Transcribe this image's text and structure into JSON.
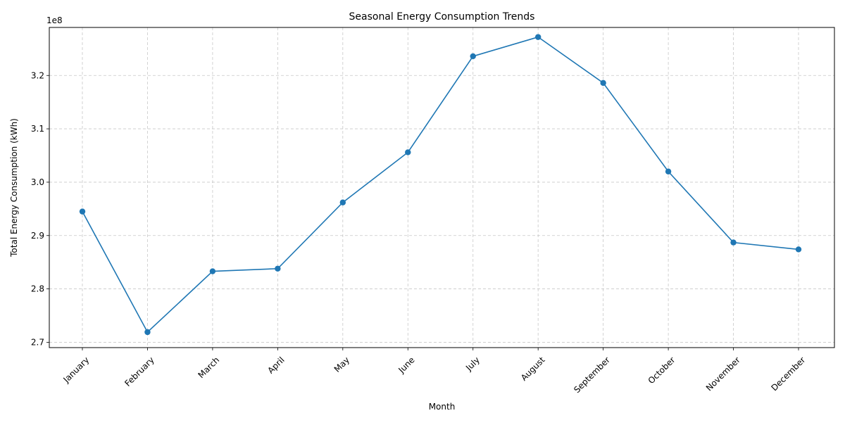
{
  "chart_data": {
    "type": "line",
    "title": "Seasonal Energy Consumption Trends",
    "xlabel": "Month",
    "ylabel": "Total Energy Consumption (kWh)",
    "y_offset_label": "1e8",
    "categories": [
      "January",
      "February",
      "March",
      "April",
      "May",
      "June",
      "July",
      "August",
      "September",
      "October",
      "November",
      "December"
    ],
    "series": [
      {
        "name": "",
        "values": [
          294500000,
          271900000,
          283300000,
          283800000,
          296200000,
          305600000,
          323600000,
          327200000,
          318600000,
          302000000,
          288700000,
          287400000
        ]
      }
    ],
    "ylim": [
      269000000,
      329000000
    ],
    "yticks": [
      270000000,
      280000000,
      290000000,
      300000000,
      310000000,
      320000000
    ],
    "ytick_labels": [
      "2.7",
      "2.8",
      "2.9",
      "3.0",
      "3.1",
      "3.2"
    ],
    "grid": true,
    "grid_style": "dashed",
    "marker": "circle",
    "line_color": "#1f77b4"
  }
}
